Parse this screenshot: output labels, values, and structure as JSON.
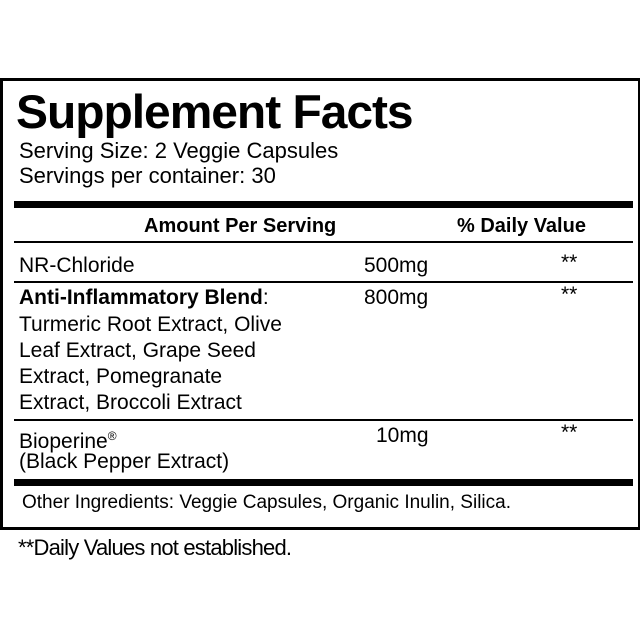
{
  "title": "Supplement Facts",
  "serving_size": "Serving Size: 2 Veggie Capsules",
  "servings_per_container": "Servings per container: 30",
  "header": {
    "amount": "Amount Per Serving",
    "dv": "% Daily Value"
  },
  "rows": [
    {
      "name": "NR-Chloride",
      "amount": "500mg",
      "dv": "**"
    },
    {
      "name": "Anti-Inflammatory Blend",
      "name_suffix": ":",
      "amount": "800mg",
      "dv": "**",
      "lines": [
        "Turmeric Root Extract, Olive",
        "Leaf Extract, Grape Seed",
        "Extract, Pomegranate",
        "Extract, Broccoli Extract"
      ]
    },
    {
      "name": "Bioperine",
      "mark": "®",
      "line2": "(Black Pepper Extract)",
      "amount": "10mg",
      "dv": "**"
    }
  ],
  "other_ingredients": "Other Ingredients: Veggie Capsules, Organic Inulin, Silica.",
  "footnote": "**Daily Values not established."
}
